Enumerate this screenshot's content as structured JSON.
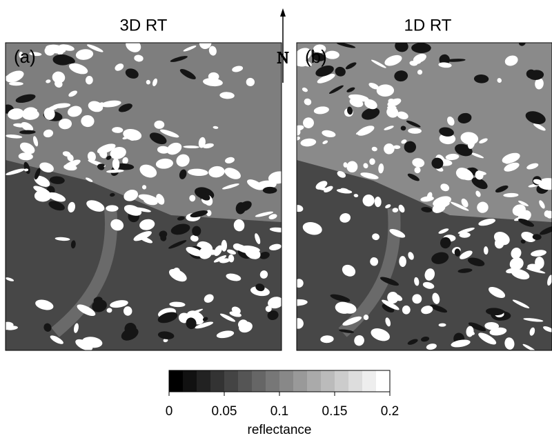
{
  "panels": [
    {
      "title": "3D RT",
      "label": "(a)"
    },
    {
      "title": "1D RT",
      "label": "(b)"
    }
  ],
  "north": "N",
  "colorbar": {
    "label": "reflectance",
    "lim": [
      0,
      0.2
    ],
    "ticks": [
      0,
      0.05,
      0.1,
      0.15,
      0.2
    ]
  }
}
